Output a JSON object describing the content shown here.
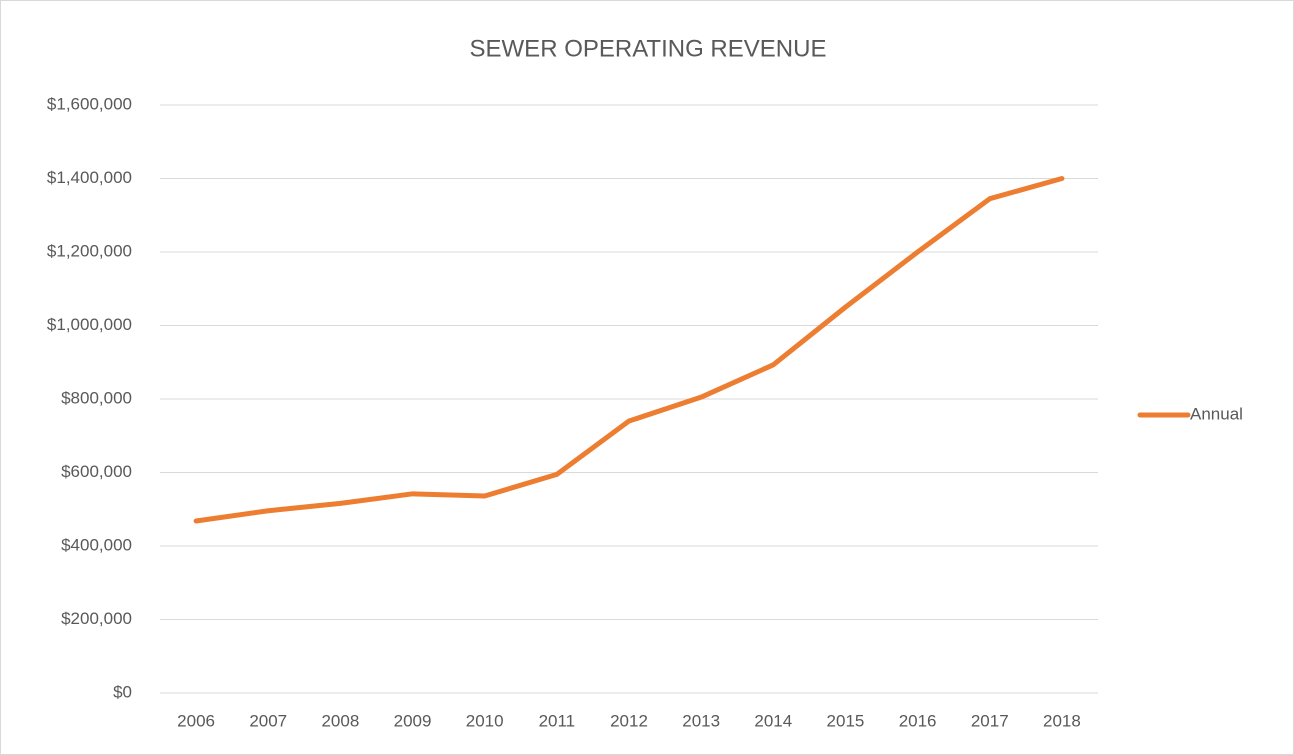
{
  "chart_data": {
    "type": "line",
    "title": "SEWER OPERATING REVENUE",
    "categories": [
      "2006",
      "2007",
      "2008",
      "2009",
      "2010",
      "2011",
      "2012",
      "2013",
      "2014",
      "2015",
      "2016",
      "2017",
      "2018"
    ],
    "series": [
      {
        "name": "Annual",
        "color": "#ed7d31",
        "values": [
          468000,
          496000,
          516000,
          542000,
          536000,
          595000,
          740000,
          805000,
          893000,
          1050000,
          1200000,
          1345000,
          1400000
        ]
      }
    ],
    "ylim": [
      0,
      1600000
    ],
    "yticks": [
      {
        "value": 0,
        "label": "$0"
      },
      {
        "value": 200000,
        "label": "$200,000"
      },
      {
        "value": 400000,
        "label": "$400,000"
      },
      {
        "value": 600000,
        "label": "$600,000"
      },
      {
        "value": 800000,
        "label": "$800,000"
      },
      {
        "value": 1000000,
        "label": "$1,000,000"
      },
      {
        "value": 1200000,
        "label": "$1,200,000"
      },
      {
        "value": 1400000,
        "label": "$1,400,000"
      },
      {
        "value": 1600000,
        "label": "$1,600,000"
      }
    ],
    "grid": true,
    "legend": "right"
  }
}
